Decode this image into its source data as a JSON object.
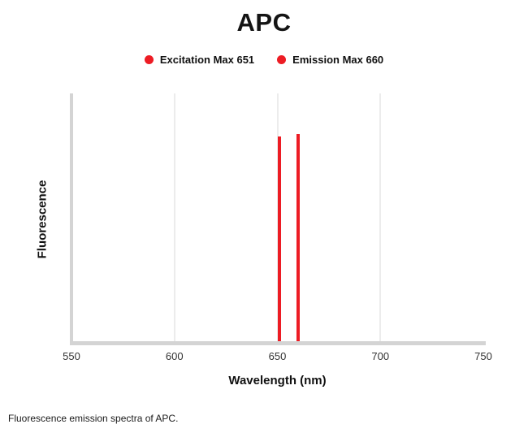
{
  "caption": "Fluorescence emission spectra of APC.",
  "colors": {
    "accent_red": "#ed1c24",
    "axis_gray": "#d4d4d4",
    "grid_gray": "#ececec"
  },
  "chart_data": {
    "type": "line",
    "title": "APC",
    "xlabel": "Wavelength (nm)",
    "ylabel": "Fluorescence",
    "xlim": [
      550,
      750
    ],
    "x_ticks": [
      550,
      600,
      650,
      700,
      750
    ],
    "grid": "vertical-only",
    "legend_position": "top-center",
    "series": [
      {
        "name": "Excitation Max 651",
        "x": 651,
        "shape": "vertical-line",
        "height_frac": 0.825,
        "color": "#ed1c24"
      },
      {
        "name": "Emission Max 660",
        "x": 660,
        "shape": "vertical-line",
        "height_frac": 0.835,
        "color": "#ed1c24"
      }
    ]
  }
}
